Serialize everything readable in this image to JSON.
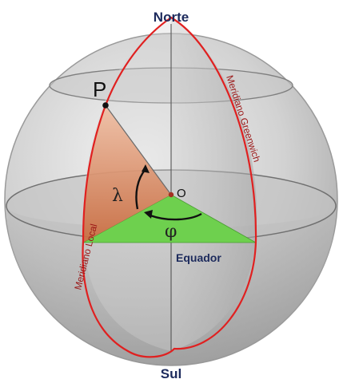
{
  "labels": {
    "north": "Norte",
    "south": "Sul",
    "point": "P",
    "origin": "O",
    "latitude_symbol": "φ",
    "longitude_symbol": "λ",
    "local_meridian": "Meridiano Local",
    "greenwich_meridian": "Meridiano Greenwich",
    "equator": "Equador"
  },
  "colors": {
    "meridian_line": "#e02020",
    "equator_wedge": "#6ed04e",
    "meridian_wedge": "#d98458",
    "label_dark_blue": "#1c2a5c",
    "meridian_label": "#9a1616"
  }
}
